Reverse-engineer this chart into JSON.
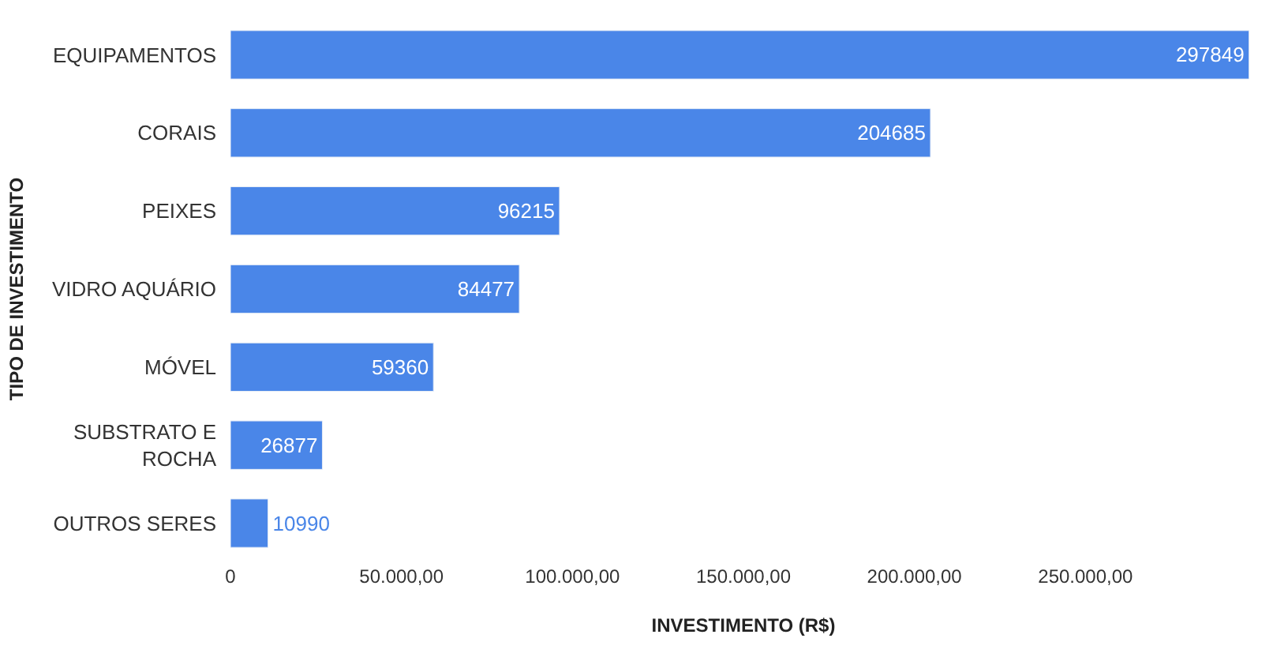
{
  "chart_data": {
    "type": "bar",
    "orientation": "horizontal",
    "xlabel": "INVESTIMENTO (R$)",
    "ylabel": "TIPO DE INVESTIMENTO",
    "categories": [
      "EQUIPAMENTOS",
      "CORAIS",
      "PEIXES",
      "VIDRO AQUÁRIO",
      "MÓVEL",
      "SUBSTRATO E ROCHA",
      "OUTROS SERES"
    ],
    "values": [
      297849,
      204685,
      96215,
      84477,
      59360,
      26877,
      10990
    ],
    "color": "#4a86e8",
    "data_labels": true,
    "xlim": [
      0,
      300000
    ],
    "xticks": [
      0,
      {
        "value": 50000,
        "label": "50.000,00"
      },
      {
        "value": 100000,
        "label": "100.000,00"
      },
      {
        "value": 150000,
        "label": "150.000,00"
      },
      {
        "value": 200000,
        "label": "200.000,00"
      },
      {
        "value": 250000,
        "label": "250.000,00"
      }
    ]
  }
}
